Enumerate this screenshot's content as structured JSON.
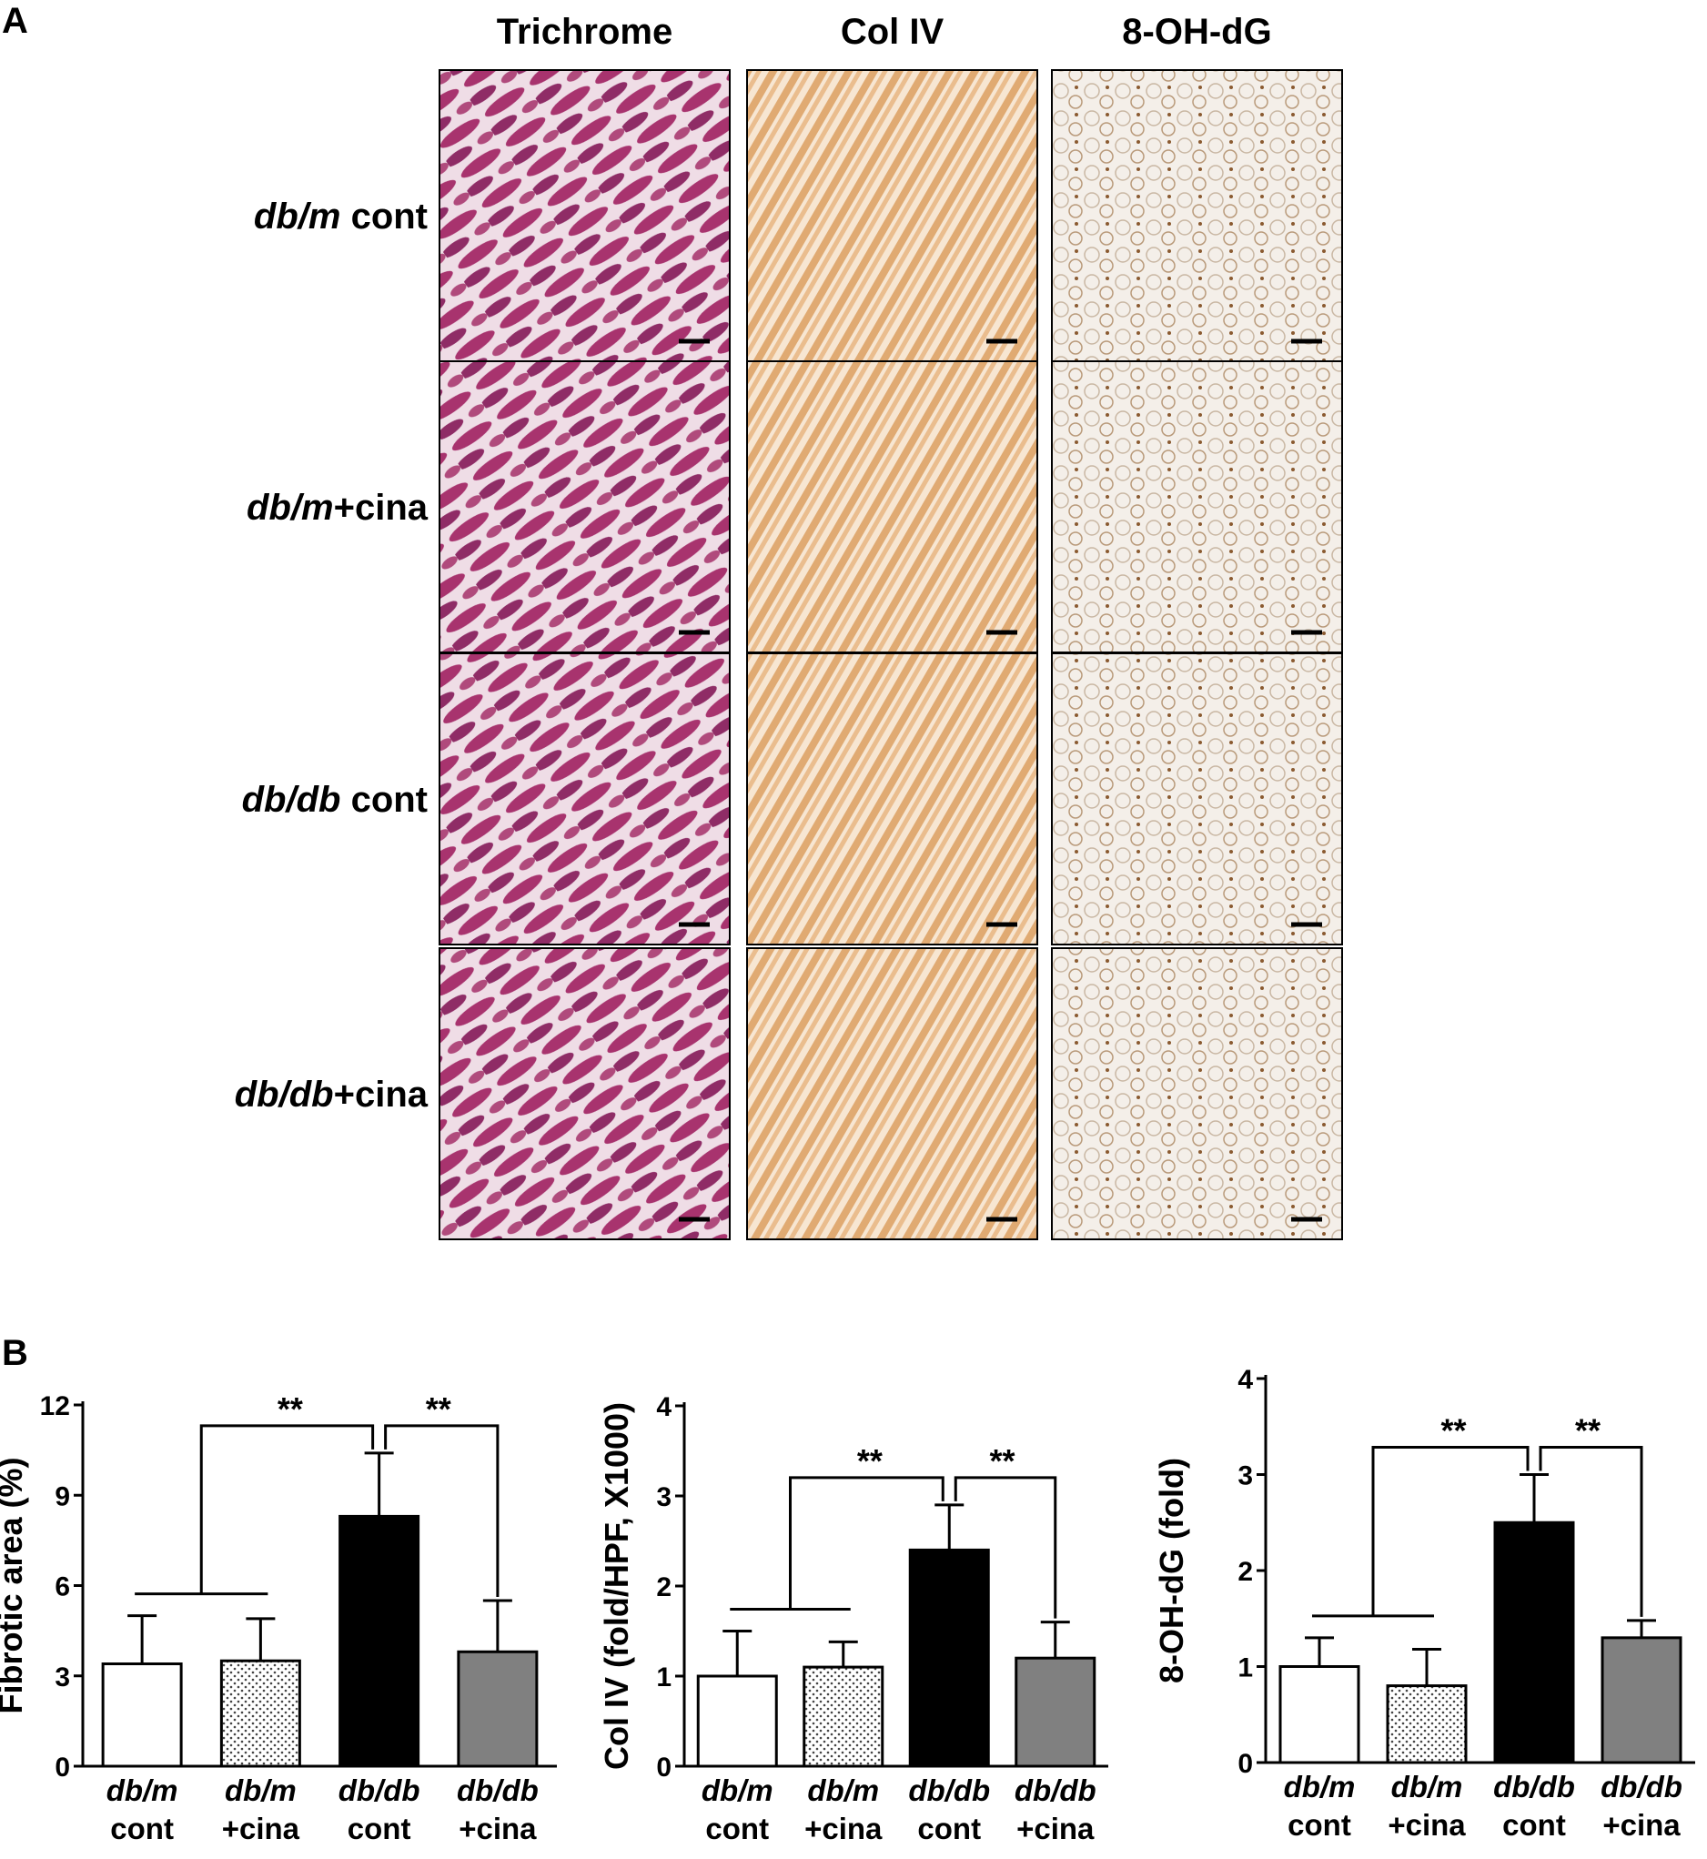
{
  "panel_a": {
    "label": "A",
    "columns": [
      "Trichrome",
      "Col IV",
      "8-OH-dG"
    ],
    "rows": [
      {
        "italic": "db/m",
        "plain": " cont"
      },
      {
        "italic": "db/m",
        "plain": "+cina"
      },
      {
        "italic": "db/db",
        "plain": " cont"
      },
      {
        "italic": "db/db",
        "plain": "+cina"
      }
    ]
  },
  "panel_b": {
    "label": "B"
  },
  "chart_data": [
    {
      "type": "bar",
      "y_label": "Fibrotic area (%)",
      "categories": [
        [
          "db/m",
          "cont"
        ],
        [
          "db/m",
          "+cina"
        ],
        [
          "db/db",
          "cont"
        ],
        [
          "db/db",
          "+cina"
        ]
      ],
      "values": [
        3.4,
        3.5,
        8.3,
        3.8
      ],
      "errors": [
        1.6,
        1.4,
        2.1,
        1.7
      ],
      "colors": [
        "#ffffff",
        "dotted",
        "#000000",
        "#808080"
      ],
      "ylim": [
        0,
        12
      ],
      "yticks": [
        0,
        3,
        6,
        9,
        12
      ],
      "annotations": [
        "**",
        "**"
      ]
    },
    {
      "type": "bar",
      "y_label": "Col IV (fold/HPF, X1000)",
      "categories": [
        [
          "db/m",
          "cont"
        ],
        [
          "db/m",
          "+cina"
        ],
        [
          "db/db",
          "cont"
        ],
        [
          "db/db",
          "+cina"
        ]
      ],
      "values": [
        1.0,
        1.1,
        2.4,
        1.2
      ],
      "errors": [
        0.5,
        0.28,
        0.5,
        0.4
      ],
      "colors": [
        "#ffffff",
        "dotted",
        "#000000",
        "#808080"
      ],
      "ylim": [
        0,
        4
      ],
      "yticks": [
        0,
        1,
        2,
        3,
        4
      ],
      "annotations": [
        "**",
        "**"
      ]
    },
    {
      "type": "bar",
      "y_label": "8-OH-dG (fold)",
      "categories": [
        [
          "db/m",
          "cont"
        ],
        [
          "db/m",
          "+cina"
        ],
        [
          "db/db",
          "cont"
        ],
        [
          "db/db",
          "+cina"
        ]
      ],
      "values": [
        1.0,
        0.8,
        2.5,
        1.3
      ],
      "errors": [
        0.3,
        0.38,
        0.5,
        0.18
      ],
      "colors": [
        "#ffffff",
        "dotted",
        "#000000",
        "#808080"
      ],
      "ylim": [
        0,
        4
      ],
      "yticks": [
        0,
        1,
        2,
        3,
        4
      ],
      "annotations": [
        "**",
        "**"
      ]
    }
  ]
}
